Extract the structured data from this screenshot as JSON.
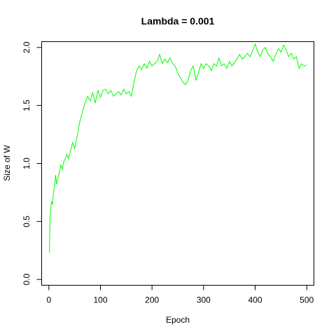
{
  "chart_data": {
    "type": "line",
    "title": "Lambda =  0.001",
    "xlabel": "Epoch",
    "ylabel": "Size of W",
    "xlim": [
      -14,
      514
    ],
    "ylim": [
      -0.05,
      2.05
    ],
    "xticks": [
      0,
      100,
      200,
      300,
      400,
      500
    ],
    "xtick_labels": [
      "0",
      "100",
      "200",
      "300",
      "400",
      "500"
    ],
    "yticks": [
      0.0,
      0.5,
      1.0,
      1.5,
      2.0
    ],
    "ytick_labels": [
      "0.0",
      "0.5",
      "1.0",
      "1.5",
      "2.0"
    ],
    "grid": false,
    "legend": "none",
    "series": [
      {
        "color": "#00ff00",
        "x": [
          1,
          2,
          3,
          5,
          7,
          9,
          11,
          13,
          15,
          17,
          20,
          23,
          26,
          29,
          32,
          35,
          38,
          42,
          46,
          50,
          55,
          60,
          65,
          70,
          75,
          80,
          85,
          90,
          95,
          100,
          105,
          110,
          115,
          120,
          125,
          130,
          135,
          140,
          145,
          150,
          155,
          160,
          165,
          170,
          175,
          180,
          185,
          190,
          195,
          200,
          205,
          210,
          215,
          220,
          225,
          230,
          235,
          240,
          245,
          250,
          255,
          260,
          265,
          270,
          275,
          280,
          285,
          290,
          295,
          300,
          305,
          310,
          315,
          320,
          325,
          330,
          335,
          340,
          345,
          350,
          355,
          360,
          365,
          370,
          375,
          380,
          385,
          390,
          395,
          400,
          405,
          410,
          415,
          420,
          425,
          430,
          435,
          440,
          445,
          450,
          455,
          460,
          465,
          470,
          475,
          480,
          485,
          490,
          495,
          500
        ],
        "y": [
          0.23,
          0.48,
          0.58,
          0.67,
          0.65,
          0.75,
          0.79,
          0.9,
          0.82,
          0.86,
          0.91,
          0.99,
          0.95,
          1.02,
          1.04,
          1.08,
          1.04,
          1.11,
          1.18,
          1.13,
          1.24,
          1.36,
          1.44,
          1.52,
          1.58,
          1.54,
          1.61,
          1.52,
          1.63,
          1.57,
          1.63,
          1.64,
          1.6,
          1.63,
          1.58,
          1.6,
          1.62,
          1.59,
          1.64,
          1.6,
          1.62,
          1.58,
          1.7,
          1.8,
          1.84,
          1.81,
          1.86,
          1.82,
          1.88,
          1.84,
          1.86,
          1.88,
          1.94,
          1.86,
          1.9,
          1.87,
          1.91,
          1.86,
          1.84,
          1.78,
          1.74,
          1.7,
          1.68,
          1.72,
          1.8,
          1.84,
          1.72,
          1.78,
          1.86,
          1.82,
          1.86,
          1.84,
          1.8,
          1.86,
          1.84,
          1.91,
          1.84,
          1.86,
          1.82,
          1.88,
          1.84,
          1.87,
          1.9,
          1.94,
          1.9,
          1.92,
          1.95,
          1.92,
          1.97,
          2.03,
          1.96,
          1.92,
          1.98,
          2.0,
          1.94,
          1.92,
          1.88,
          1.94,
          1.99,
          1.96,
          2.02,
          1.98,
          1.92,
          1.95,
          1.9,
          1.92,
          1.82,
          1.86,
          1.84,
          1.85
        ]
      }
    ]
  }
}
